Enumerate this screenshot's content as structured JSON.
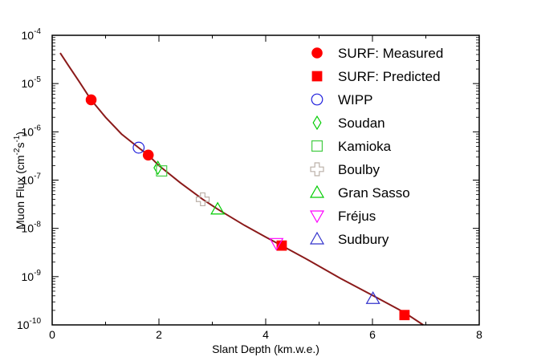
{
  "chart_data": {
    "type": "scatter",
    "xlabel": "Slant Depth (km.w.e.)",
    "ylabel": "Muon Flux (cm",
    "ylabel_sup1": "-2",
    "ylabel_mid": "s",
    "ylabel_sup2": "-1",
    "ylabel_end": ")",
    "xlim": [
      0,
      8
    ],
    "ylim": [
      1e-10,
      0.0001
    ],
    "yscale": "log",
    "x_ticks": [
      "0",
      "2",
      "4",
      "6",
      "8"
    ],
    "y_tick_bases": [
      "10",
      "10",
      "10",
      "10",
      "10",
      "10",
      "10"
    ],
    "y_tick_exponents": [
      "-10",
      "-9",
      "-8",
      "-7",
      "-6",
      "-5",
      "-4"
    ],
    "legend_position": "top-right",
    "series": [
      {
        "name": "SURF: Measured",
        "marker": "filled-circle",
        "color": "#ff0000",
        "points": [
          {
            "x": 0.73,
            "y": 4.6e-06
          },
          {
            "x": 1.8,
            "y": 3.3e-07
          }
        ]
      },
      {
        "name": "SURF: Predicted",
        "marker": "filled-square",
        "color": "#ff0000",
        "points": [
          {
            "x": 4.3,
            "y": 4.4e-09
          },
          {
            "x": 6.6,
            "y": 1.6e-10
          }
        ]
      },
      {
        "name": "WIPP",
        "marker": "circle",
        "color": "#2222dd",
        "points": [
          {
            "x": 1.62,
            "y": 4.7e-07
          }
        ]
      },
      {
        "name": "Soudan",
        "marker": "diamond",
        "color": "#00cc00",
        "points": [
          {
            "x": 1.98,
            "y": 1.8e-07
          }
        ]
      },
      {
        "name": "Kamioka",
        "marker": "square",
        "color": "#44cc44",
        "points": [
          {
            "x": 2.05,
            "y": 1.55e-07
          }
        ]
      },
      {
        "name": "Boulby",
        "marker": "cross",
        "color": "#bbb0a8",
        "points": [
          {
            "x": 2.82,
            "y": 4e-08
          }
        ]
      },
      {
        "name": "Gran Sasso",
        "marker": "triangle-up",
        "color": "#00cc00",
        "points": [
          {
            "x": 3.1,
            "y": 2.5e-08
          }
        ]
      },
      {
        "name": "Fréjus",
        "marker": "triangle-down",
        "color": "#ff00ff",
        "points": [
          {
            "x": 4.2,
            "y": 4.9e-09
          }
        ]
      },
      {
        "name": "Sudbury",
        "marker": "triangle-up",
        "color": "#3333cc",
        "points": [
          {
            "x": 6.01,
            "y": 3.5e-10
          }
        ]
      }
    ],
    "fit_curve": {
      "color": "#8b1a1a",
      "points": [
        {
          "x": 0.15,
          "y": 4.3e-05
        },
        {
          "x": 0.3,
          "y": 2.4e-05
        },
        {
          "x": 0.5,
          "y": 1.12e-05
        },
        {
          "x": 0.73,
          "y": 4.6e-06
        },
        {
          "x": 1.0,
          "y": 2e-06
        },
        {
          "x": 1.3,
          "y": 9e-07
        },
        {
          "x": 1.62,
          "y": 4.7e-07
        },
        {
          "x": 1.8,
          "y": 3.3e-07
        },
        {
          "x": 2.0,
          "y": 2e-07
        },
        {
          "x": 2.4,
          "y": 8.8e-08
        },
        {
          "x": 2.82,
          "y": 4e-08
        },
        {
          "x": 3.1,
          "y": 2.5e-08
        },
        {
          "x": 3.6,
          "y": 1.16e-08
        },
        {
          "x": 4.0,
          "y": 6.6e-09
        },
        {
          "x": 4.3,
          "y": 4.4e-09
        },
        {
          "x": 4.8,
          "y": 2.2e-09
        },
        {
          "x": 5.4,
          "y": 9.2e-10
        },
        {
          "x": 6.0,
          "y": 4.1e-10
        },
        {
          "x": 6.6,
          "y": 1.8e-10
        },
        {
          "x": 6.95,
          "y": 1e-10
        }
      ]
    }
  }
}
